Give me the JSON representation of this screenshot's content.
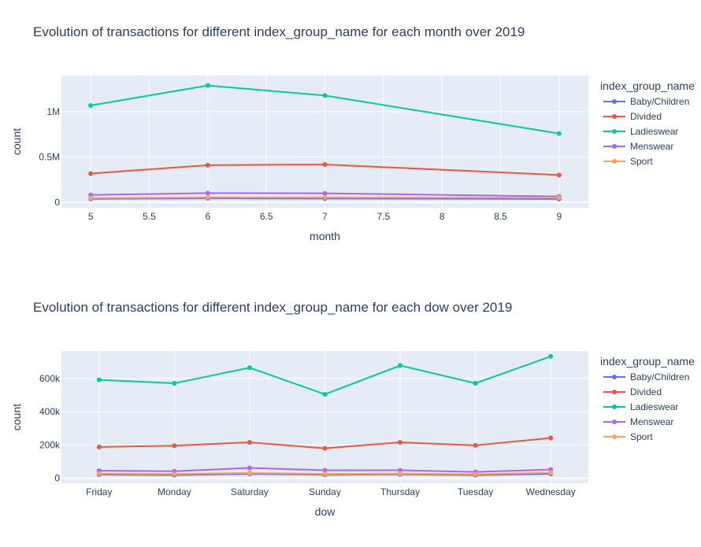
{
  "colors": {
    "Baby/Children": "#636efa",
    "Divided": "#EF553B",
    "Ladieswear": "#00cc96",
    "Menswear": "#ab63fa",
    "Sport": "#FFA15A"
  },
  "chart_data": [
    {
      "type": "line",
      "title": "Evolution of transactions for different index_group_name for each month over 2019",
      "xlabel": "month",
      "ylabel": "count",
      "legend_title": "index_group_name",
      "legend_position": "right",
      "grid": true,
      "x": [
        5,
        6,
        7,
        9
      ],
      "xlim": [
        4.75,
        9.25
      ],
      "ylim": [
        -60000,
        1400000
      ],
      "x_ticks": [
        5,
        5.5,
        6,
        6.5,
        7,
        7.5,
        8,
        8.5,
        9
      ],
      "x_tick_labels": [
        "5",
        "5.5",
        "6",
        "6.5",
        "7",
        "7.5",
        "8",
        "8.5",
        "9"
      ],
      "y_ticks": [
        0,
        500000,
        1000000
      ],
      "y_tick_labels": [
        "0",
        "0.5M",
        "1M"
      ],
      "series": [
        {
          "name": "Baby/Children",
          "values": [
            38000,
            45000,
            42000,
            38000
          ]
        },
        {
          "name": "Divided",
          "values": [
            318000,
            410000,
            418000,
            302000
          ]
        },
        {
          "name": "Ladieswear",
          "values": [
            1070000,
            1290000,
            1180000,
            760000
          ]
        },
        {
          "name": "Menswear",
          "values": [
            82000,
            102000,
            100000,
            65000
          ]
        },
        {
          "name": "Sport",
          "values": [
            48000,
            56000,
            55000,
            52000
          ]
        }
      ]
    },
    {
      "type": "line",
      "title": "Evolution of transactions for different index_group_name for each dow over 2019",
      "xlabel": "dow",
      "ylabel": "count",
      "legend_title": "index_group_name",
      "legend_position": "right",
      "grid": true,
      "categories": [
        "Friday",
        "Monday",
        "Saturday",
        "Sunday",
        "Thursday",
        "Tuesday",
        "Wednesday"
      ],
      "ylim": [
        -30000,
        765000
      ],
      "y_ticks": [
        0,
        200000,
        400000,
        600000
      ],
      "y_tick_labels": [
        "0",
        "200k",
        "400k",
        "600k"
      ],
      "series": [
        {
          "name": "Baby/Children",
          "values": [
            22000,
            19000,
            27000,
            21000,
            23000,
            19000,
            27000
          ]
        },
        {
          "name": "Divided",
          "values": [
            188000,
            196000,
            216000,
            180000,
            216000,
            198000,
            242000
          ]
        },
        {
          "name": "Ladieswear",
          "values": [
            592000,
            571000,
            665000,
            505000,
            678000,
            571000,
            733000
          ]
        },
        {
          "name": "Menswear",
          "values": [
            46000,
            42000,
            62000,
            48000,
            48000,
            38000,
            52000
          ]
        },
        {
          "name": "Sport",
          "values": [
            28000,
            26000,
            32000,
            26000,
            28000,
            25000,
            34000
          ]
        }
      ]
    }
  ]
}
